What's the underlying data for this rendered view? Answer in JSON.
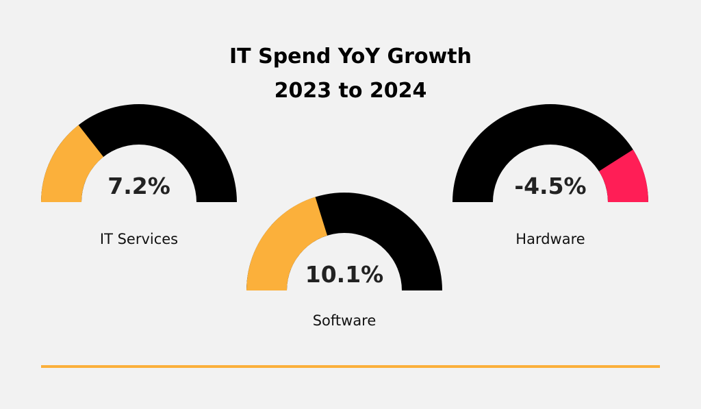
{
  "title_line1": "IT Spend YoY Growth",
  "title_line2": "2023 to 2024",
  "chart_data": {
    "type": "gauge",
    "title": "IT Spend YoY Growth 2023 to 2024",
    "unit": "%",
    "gauges": [
      {
        "label": "IT Services",
        "value": 7.2,
        "display": "7.2%",
        "direction": "positive",
        "color": "#fbb03b"
      },
      {
        "label": "Software",
        "value": 10.1,
        "display": "10.1%",
        "direction": "positive",
        "color": "#fbb03b"
      },
      {
        "label": "Hardware",
        "value": -4.5,
        "display": "-4.5%",
        "direction": "negative",
        "color": "#ff1e56"
      }
    ]
  },
  "colors": {
    "track": "#000000",
    "positive": "#fbb03b",
    "negative": "#ff1e56",
    "baseline": "#fbb03b",
    "background": "#f2f2f2"
  }
}
